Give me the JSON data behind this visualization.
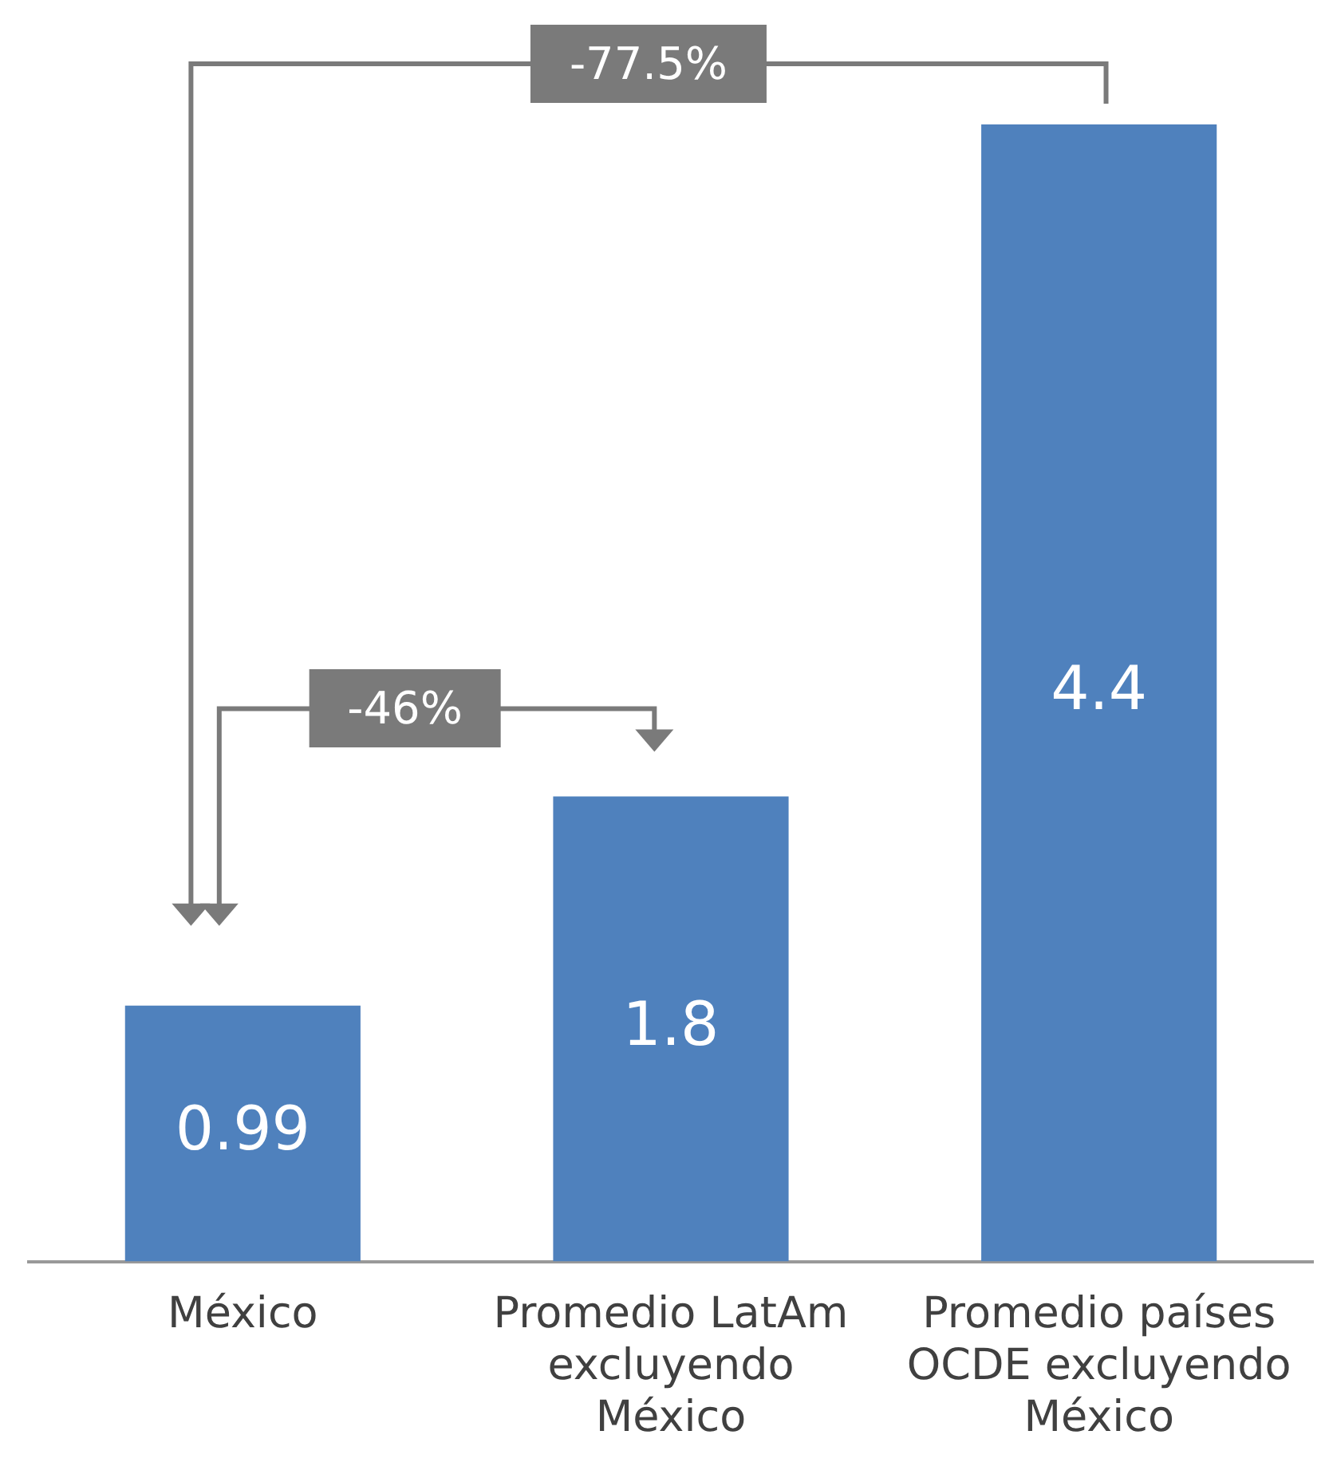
{
  "chart_data": {
    "type": "bar",
    "categories": [
      "México",
      "Promedio LatAm excluyendo México",
      "Promedio países OCDE excluyendo México"
    ],
    "values": [
      0.99,
      1.8,
      4.4
    ],
    "color": "#4f81bd",
    "relative": false,
    "data_labels": true,
    "grid": false,
    "legend": false,
    "annotations": [
      "-77.5%",
      "-46%"
    ]
  }
}
